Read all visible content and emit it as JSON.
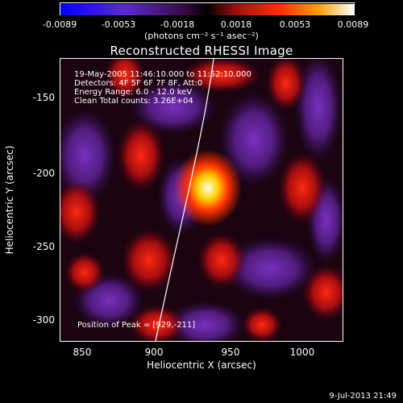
{
  "colorbar": {
    "ticks": [
      "-0.0089",
      "-0.0053",
      "-0.0018",
      "0.0018",
      "0.0053",
      "0.0089"
    ],
    "units": "(photons cm⁻² s⁻¹ asec⁻²)"
  },
  "title": "Reconstructed RHESSI Image",
  "info_lines": [
    "19-May-2005 11:46:10.000 to 11:52:10.000",
    "Detectors: 4F 5F 6F 7F 8F, Att:0",
    "Energy Range: 6.0 - 12.0 keV",
    "Clean     Total counts: 3.26E+04"
  ],
  "peak_label": "Position of Peak = [929,-211]",
  "x_axis": {
    "label": "Heliocentric X (arcsec)",
    "ticks": [
      "850",
      "900",
      "950",
      "1000"
    ]
  },
  "y_axis": {
    "label": "Heliocentric Y (arcsec)",
    "ticks": [
      "-150",
      "-200",
      "-250",
      "-300"
    ]
  },
  "timestamp": "9-Jul-2013 21:49",
  "colors": {
    "low": "#0000ff",
    "mid_low": "#7a2aa0",
    "mid": "#2a0010",
    "high": "#ff3010",
    "peak": "#ffffe0"
  },
  "peak": {
    "x": 929,
    "y": -211
  }
}
